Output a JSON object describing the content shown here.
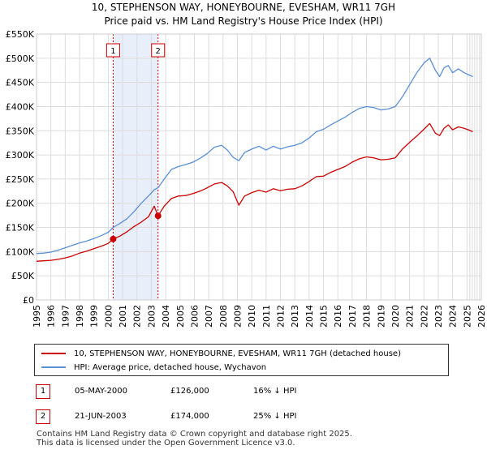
{
  "chart_data": {
    "type": "line",
    "title": "10, STEPHENSON WAY, HONEYBOURNE, EVESHAM, WR11 7GH",
    "subtitle": "Price paid vs. HM Land Registry's House Price Index (HPI)",
    "xlim": [
      1995,
      2026
    ],
    "ylim": [
      0,
      550000
    ],
    "x_ticks": [
      "1995",
      "1996",
      "1997",
      "1998",
      "1999",
      "2000",
      "2001",
      "2002",
      "2003",
      "2004",
      "2005",
      "2006",
      "2007",
      "2008",
      "2009",
      "2010",
      "2011",
      "2012",
      "2013",
      "2014",
      "2015",
      "2016",
      "2017",
      "2018",
      "2019",
      "2020",
      "2021",
      "2022",
      "2023",
      "2024",
      "2025",
      "2026"
    ],
    "y_ticks": [
      {
        "value": 0,
        "label": "£0"
      },
      {
        "value": 50000,
        "label": "£50K"
      },
      {
        "value": 100000,
        "label": "£100K"
      },
      {
        "value": 150000,
        "label": "£150K"
      },
      {
        "value": 200000,
        "label": "£200K"
      },
      {
        "value": 250000,
        "label": "£250K"
      },
      {
        "value": 300000,
        "label": "£300K"
      },
      {
        "value": 350000,
        "label": "£350K"
      },
      {
        "value": 400000,
        "label": "£400K"
      },
      {
        "value": 450000,
        "label": "£450K"
      },
      {
        "value": 500000,
        "label": "£500K"
      },
      {
        "value": 550000,
        "label": "£550K"
      }
    ],
    "grid": true,
    "shaded_period": [
      2000.34,
      2003.47
    ],
    "forecast_start": 2025.2,
    "series": [
      {
        "name": "10, STEPHENSON WAY, HONEYBOURNE, EVESHAM, WR11 7GH (detached house)",
        "color": "#cc0000",
        "x": [
          1995.0,
          1995.5,
          1996.0,
          1996.5,
          1997.0,
          1997.5,
          1998.0,
          1998.5,
          1999.0,
          1999.5,
          2000.0,
          2000.34,
          2000.8,
          2001.3,
          2001.8,
          2002.3,
          2002.8,
          2003.2,
          2003.47,
          2003.9,
          2004.4,
          2004.9,
          2005.4,
          2005.9,
          2006.4,
          2006.9,
          2007.4,
          2007.9,
          2008.3,
          2008.7,
          2009.1,
          2009.5,
          2010.0,
          2010.5,
          2011.0,
          2011.5,
          2012.0,
          2012.5,
          2013.0,
          2013.5,
          2014.0,
          2014.5,
          2015.0,
          2015.5,
          2016.0,
          2016.5,
          2017.0,
          2017.5,
          2018.0,
          2018.5,
          2019.0,
          2019.5,
          2020.0,
          2020.5,
          2021.0,
          2021.5,
          2022.0,
          2022.4,
          2022.8,
          2023.1,
          2023.4,
          2023.7,
          2024.0,
          2024.4,
          2024.8,
          2025.1,
          2025.4
        ],
        "y": [
          80000,
          81000,
          82000,
          84000,
          87000,
          91000,
          97000,
          101000,
          106000,
          111000,
          117000,
          126000,
          132000,
          141000,
          152000,
          161000,
          172000,
          194000,
          174000,
          194000,
          210000,
          215000,
          216000,
          220000,
          225000,
          232000,
          240000,
          243000,
          236000,
          224000,
          196000,
          215000,
          222000,
          227000,
          223000,
          230000,
          226000,
          229000,
          230000,
          236000,
          245000,
          255000,
          256000,
          264000,
          270000,
          276000,
          285000,
          292000,
          296000,
          294000,
          290000,
          291000,
          294000,
          312000,
          326000,
          339000,
          353000,
          365000,
          345000,
          340000,
          355000,
          362000,
          352000,
          358000,
          355000,
          352000,
          348000
        ]
      },
      {
        "name": "HPI: Average price, detached house, Wychavon",
        "color": "#5b8fd6",
        "x": [
          1995.0,
          1995.5,
          1996.0,
          1996.5,
          1997.0,
          1997.5,
          1998.0,
          1998.5,
          1999.0,
          1999.5,
          2000.0,
          2000.34,
          2000.8,
          2001.3,
          2001.8,
          2002.3,
          2002.8,
          2003.2,
          2003.47,
          2003.9,
          2004.4,
          2004.9,
          2005.4,
          2005.9,
          2006.4,
          2006.9,
          2007.4,
          2007.9,
          2008.3,
          2008.7,
          2009.1,
          2009.5,
          2010.0,
          2010.5,
          2011.0,
          2011.5,
          2012.0,
          2012.5,
          2013.0,
          2013.5,
          2014.0,
          2014.5,
          2015.0,
          2015.5,
          2016.0,
          2016.5,
          2017.0,
          2017.5,
          2018.0,
          2018.5,
          2019.0,
          2019.5,
          2020.0,
          2020.5,
          2021.0,
          2021.5,
          2022.0,
          2022.4,
          2022.8,
          2023.1,
          2023.4,
          2023.7,
          2024.0,
          2024.4,
          2024.8,
          2025.1,
          2025.4
        ],
        "y": [
          96000,
          97000,
          99000,
          103000,
          108000,
          113000,
          118000,
          122000,
          127000,
          133000,
          140000,
          150000,
          158000,
          168000,
          183000,
          200000,
          215000,
          228000,
          232000,
          250000,
          270000,
          276000,
          280000,
          285000,
          293000,
          303000,
          316000,
          320000,
          310000,
          295000,
          288000,
          305000,
          312000,
          318000,
          310000,
          318000,
          312000,
          317000,
          320000,
          325000,
          335000,
          348000,
          353000,
          362000,
          370000,
          378000,
          388000,
          396000,
          400000,
          398000,
          393000,
          395000,
          400000,
          420000,
          445000,
          470000,
          490000,
          500000,
          475000,
          462000,
          480000,
          485000,
          470000,
          478000,
          470000,
          466000,
          462000
        ]
      }
    ],
    "markers": [
      {
        "label": "1",
        "x": 2000.34,
        "y": 126000
      },
      {
        "label": "2",
        "x": 2003.47,
        "y": 174000
      }
    ]
  },
  "legend": {
    "items": [
      {
        "label": "10, STEPHENSON WAY, HONEYBOURNE, EVESHAM, WR11 7GH (detached house)",
        "color": "#cc0000"
      },
      {
        "label": "HPI: Average price, detached house, Wychavon",
        "color": "#5b8fd6"
      }
    ]
  },
  "transactions": [
    {
      "num": "1",
      "date": "05-MAY-2000",
      "price": "£126,000",
      "hpi": "16% ↓ HPI"
    },
    {
      "num": "2",
      "date": "21-JUN-2003",
      "price": "£174,000",
      "hpi": "25% ↓ HPI"
    }
  ],
  "footer": {
    "line1": "Contains HM Land Registry data © Crown copyright and database right 2025.",
    "line2": "This data is licensed under the Open Government Licence v3.0."
  }
}
